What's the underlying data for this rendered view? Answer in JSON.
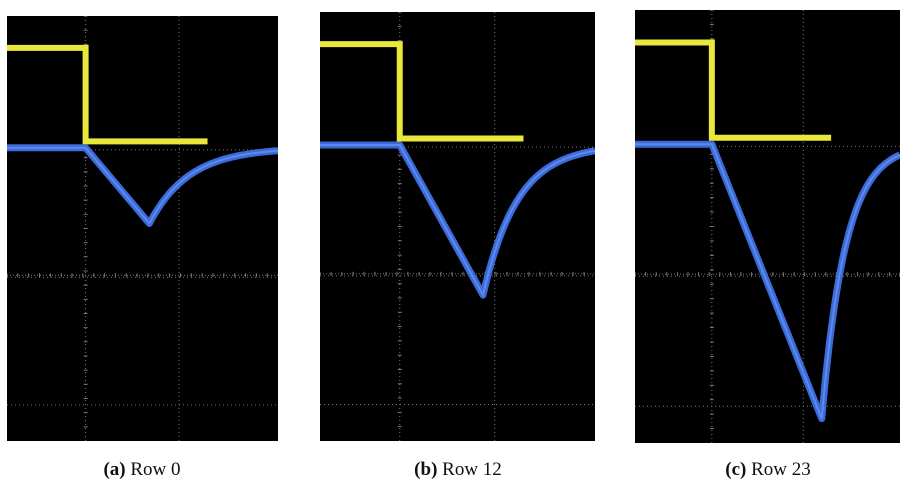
{
  "colors": {
    "background": "#000000",
    "grid": "#7a7a7a",
    "yellow_trace": "#e8e83a",
    "blue_trace": "#3c6ad6"
  },
  "figure": {
    "panels": [
      {
        "tag": "(a)",
        "label": "Row 0",
        "pulse_depth": 0.27
      },
      {
        "tag": "(b)",
        "label": "Row 12",
        "pulse_depth": 0.53
      },
      {
        "tag": "(c)",
        "label": "Row 23",
        "pulse_depth": 0.96
      }
    ]
  }
}
